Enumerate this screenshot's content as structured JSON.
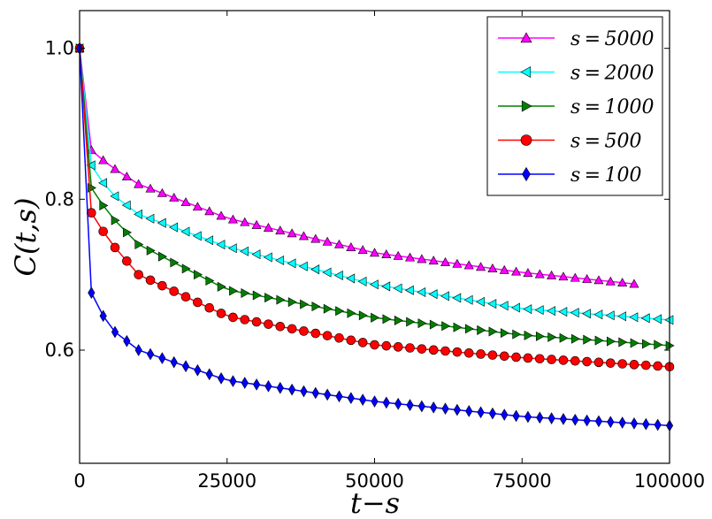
{
  "chart_data": {
    "type": "line",
    "xlabel": "t−s",
    "ylabel": "C(t,s)",
    "xlim": [
      0,
      100000
    ],
    "ylim": [
      0.45,
      1.05
    ],
    "xticks": [
      0,
      25000,
      50000,
      75000,
      100000
    ],
    "xtick_labels": [
      "0",
      "25000",
      "50000",
      "75000",
      "100000"
    ],
    "yticks": [
      0.6,
      0.8,
      1.0
    ],
    "ytick_labels": [
      "0.6",
      "0.8",
      "1.0"
    ],
    "grid": false,
    "legend_position": "top-right",
    "series": [
      {
        "name": "s = 5000",
        "color": "#ff00ff",
        "marker": "triangle-up",
        "x_end": 95000,
        "values_at": {
          "0": 1.0,
          "2000": 0.865,
          "5000": 0.845,
          "10000": 0.82,
          "25000": 0.775,
          "50000": 0.729,
          "75000": 0.703,
          "95000": 0.687
        }
      },
      {
        "name": "s = 2000",
        "color": "#00ffff",
        "marker": "triangle-left",
        "x_end": 100000,
        "values_at": {
          "0": 1.0,
          "2000": 0.845,
          "5000": 0.81,
          "10000": 0.78,
          "25000": 0.737,
          "50000": 0.687,
          "75000": 0.655,
          "100000": 0.64
        }
      },
      {
        "name": "s = 1000",
        "color": "#008000",
        "marker": "triangle-right",
        "x_end": 100000,
        "values_at": {
          "0": 1.0,
          "2000": 0.815,
          "5000": 0.78,
          "10000": 0.74,
          "25000": 0.68,
          "50000": 0.643,
          "75000": 0.62,
          "100000": 0.606
        }
      },
      {
        "name": "s = 500",
        "color": "#ff0000",
        "marker": "circle",
        "x_end": 100000,
        "values_at": {
          "0": 1.0,
          "2000": 0.782,
          "5000": 0.745,
          "10000": 0.7,
          "25000": 0.645,
          "50000": 0.607,
          "75000": 0.59,
          "100000": 0.578
        }
      },
      {
        "name": "s = 100",
        "color": "#0000ff",
        "marker": "diamond",
        "x_end": 100000,
        "values_at": {
          "0": 1.0,
          "2000": 0.676,
          "5000": 0.63,
          "10000": 0.6,
          "25000": 0.56,
          "50000": 0.532,
          "75000": 0.512,
          "100000": 0.5
        }
      }
    ]
  }
}
